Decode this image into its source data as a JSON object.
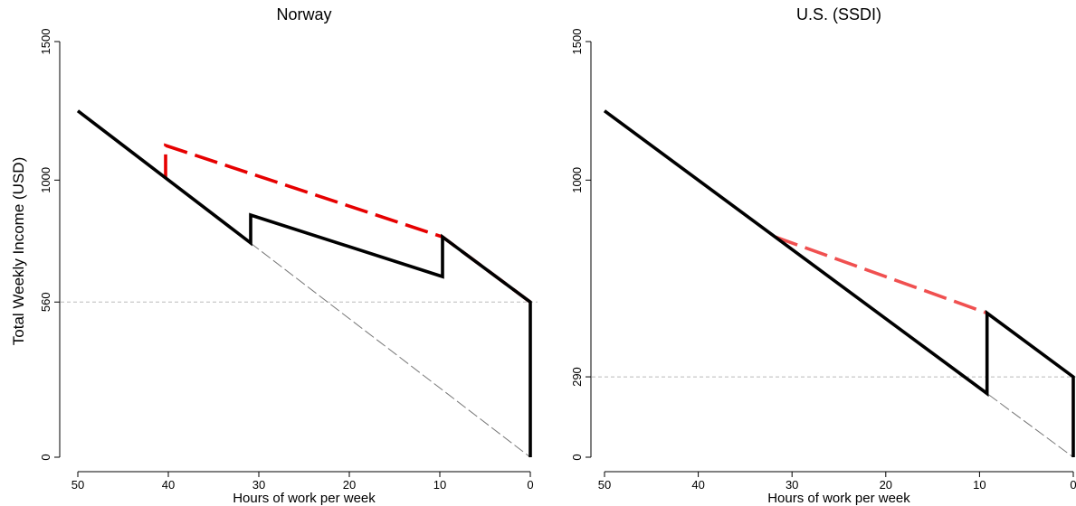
{
  "y_axis_title": "Total Weekly Income (USD)",
  "chart_data": [
    {
      "type": "line",
      "title": "Norway",
      "xlabel": "Hours of work per week",
      "ylabel": "Total Weekly Income (USD)",
      "xlim": [
        50,
        0
      ],
      "ylim": [
        0,
        1500
      ],
      "xticks": [
        50,
        40,
        30,
        20,
        10,
        0
      ],
      "yticks": [
        0,
        560,
        1000,
        1500
      ],
      "grid": false,
      "legend": "none",
      "series": [
        {
          "style": "dashed-thin-gray",
          "color": "#777777",
          "points": [
            [
              50,
              1250
            ],
            [
              0,
              0
            ]
          ]
        },
        {
          "style": "dashed-thick-red",
          "color": "#e60000",
          "points": [
            [
              40.3,
              1008
            ],
            [
              40.3,
              1125
            ],
            [
              9.7,
              795
            ],
            [
              0,
              560
            ]
          ]
        },
        {
          "style": "solid-thick-black",
          "color": "#000000",
          "points": [
            [
              50,
              1250
            ],
            [
              40.3,
              1008
            ],
            [
              30.9,
              773
            ],
            [
              30.9,
              874
            ],
            [
              9.7,
              652
            ],
            [
              9.7,
              795
            ],
            [
              0,
              560
            ],
            [
              0,
              0
            ]
          ]
        }
      ],
      "reference_lines": [
        {
          "axis": "y",
          "value": 560,
          "style": "dashed-light-gray",
          "color": "#bbbbbb"
        }
      ]
    },
    {
      "type": "line",
      "title": "U.S. (SSDI)",
      "xlabel": "Hours of work per week",
      "ylabel": "",
      "xlim": [
        50,
        0
      ],
      "ylim": [
        0,
        1500
      ],
      "xticks": [
        50,
        40,
        30,
        20,
        10,
        0
      ],
      "yticks": [
        0,
        290,
        1000,
        1500
      ],
      "grid": false,
      "legend": "none",
      "series": [
        {
          "style": "dashed-thin-gray",
          "color": "#777777",
          "points": [
            [
              50,
              1250
            ],
            [
              0,
              0
            ]
          ]
        },
        {
          "style": "dashed-thick-red",
          "color": "#f05050",
          "points": [
            [
              31.8,
              795
            ],
            [
              9.2,
              520
            ]
          ]
        },
        {
          "style": "solid-thick-black",
          "color": "#000000",
          "points": [
            [
              50,
              1250
            ],
            [
              9.2,
              230
            ],
            [
              9.2,
              520
            ],
            [
              0,
              290
            ],
            [
              0,
              0
            ]
          ]
        }
      ],
      "reference_lines": [
        {
          "axis": "y",
          "value": 290,
          "style": "dashed-light-gray",
          "color": "#bbbbbb"
        }
      ]
    }
  ]
}
